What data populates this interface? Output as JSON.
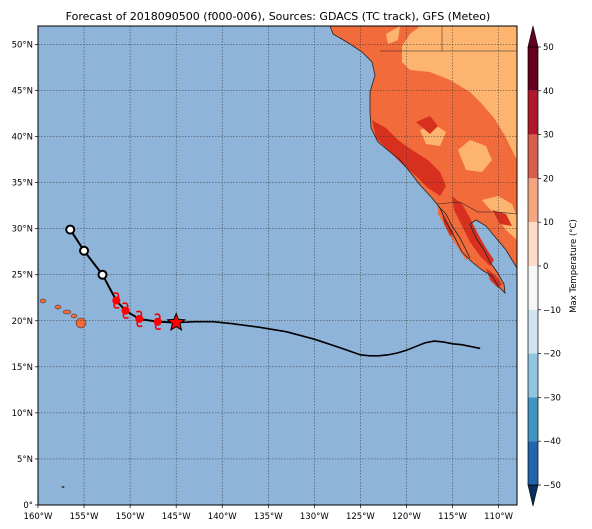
{
  "title": "Forecast of 2018090500 (f000-006), Sources: GDACS (TC track), GFS (Meteo)",
  "map": {
    "lon_range": [
      -160,
      -108
    ],
    "lat_range": [
      0,
      52
    ],
    "x_ticks": [
      "160°W",
      "155°W",
      "150°W",
      "145°W",
      "140°W",
      "135°W",
      "130°W",
      "125°W",
      "120°W",
      "115°W",
      "110°W"
    ],
    "x_tick_values": [
      -160,
      -155,
      -150,
      -145,
      -140,
      -135,
      -130,
      -125,
      -120,
      -115,
      -110
    ],
    "y_ticks": [
      "0°",
      "5°N",
      "10°N",
      "15°N",
      "20°N",
      "25°N",
      "30°N",
      "35°N",
      "40°N",
      "45°N",
      "50°N"
    ],
    "y_tick_values": [
      0,
      5,
      10,
      15,
      20,
      25,
      30,
      35,
      40,
      45,
      50
    ],
    "grid": true,
    "ocean_color": "#8fb4d9",
    "track_past": [
      [
        -112,
        17.0
      ],
      [
        -113,
        17.2
      ],
      [
        -114,
        17.4
      ],
      [
        -115,
        17.5
      ],
      [
        -116,
        17.7
      ],
      [
        -117,
        17.8
      ],
      [
        -118,
        17.6
      ],
      [
        -119,
        17.2
      ],
      [
        -120,
        16.8
      ],
      [
        -121,
        16.5
      ],
      [
        -122,
        16.3
      ],
      [
        -123,
        16.2
      ],
      [
        -124,
        16.2
      ],
      [
        -125,
        16.3
      ],
      [
        -127,
        17.0
      ],
      [
        -130,
        18.0
      ],
      [
        -133,
        18.8
      ],
      [
        -136,
        19.3
      ],
      [
        -139,
        19.7
      ],
      [
        -141,
        19.9
      ],
      [
        -143,
        19.9
      ],
      [
        -145,
        19.8
      ]
    ],
    "current_position": [
      -145,
      19.8
    ],
    "forecast_points_red": [
      [
        -147,
        19.9
      ],
      [
        -149,
        20.2
      ],
      [
        -150.5,
        21.1
      ],
      [
        -151.5,
        22.2
      ]
    ],
    "forecast_points_open": [
      [
        -153,
        25.0
      ],
      [
        -155,
        27.6
      ],
      [
        -156.5,
        29.9
      ]
    ]
  },
  "colorbar": {
    "label": "Max Temperature (°C)",
    "ticks": [
      "50",
      "40",
      "30",
      "20",
      "10",
      "0",
      "−10",
      "−20",
      "−30",
      "−40",
      "−50"
    ],
    "tick_values": [
      50,
      40,
      30,
      20,
      10,
      0,
      -10,
      -20,
      -30,
      -40,
      -50
    ],
    "colors": [
      "#67001f",
      "#b2182b",
      "#d6604d",
      "#f4a582",
      "#fddbc7",
      "#f7f7f7",
      "#d1e5f0",
      "#92c5de",
      "#4393c3",
      "#2166ac",
      "#053061"
    ]
  }
}
